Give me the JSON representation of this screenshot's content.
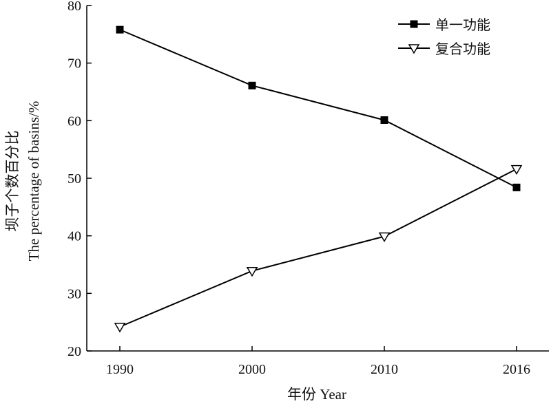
{
  "chart_data": {
    "type": "line",
    "title": "",
    "xlabel": "年份 Year",
    "ylabel_lines": [
      "坝子个数百分比",
      "The percentage of basins/%"
    ],
    "categories": [
      "1990",
      "2000",
      "2010",
      "2016"
    ],
    "ylim": [
      20,
      80
    ],
    "yticks": [
      20,
      30,
      40,
      50,
      60,
      70,
      80
    ],
    "grid": false,
    "legend_position": "top-right",
    "series": [
      {
        "name": "单一功能",
        "values": [
          75.8,
          66.1,
          60.1,
          48.4
        ],
        "marker": "filled-square",
        "color": "#000000"
      },
      {
        "name": "复合功能",
        "values": [
          24.2,
          33.9,
          39.9,
          51.6
        ],
        "marker": "open-triangle-down",
        "color": "#000000"
      }
    ]
  }
}
